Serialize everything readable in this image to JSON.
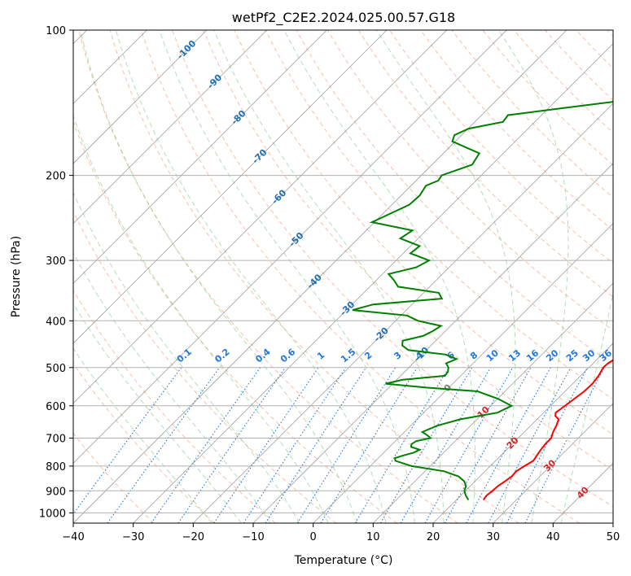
{
  "chart_data": {
    "type": "line",
    "subtype": "skew-t log-p diagram",
    "title": "wetPf2_C2E2.2024.025.00.57.G18",
    "xlabel": "Temperature (°C)",
    "ylabel": "Pressure (hPa)",
    "xlim": [
      -40,
      50
    ],
    "ylim": [
      1050,
      100
    ],
    "y_scale": "log",
    "grid": true,
    "x_ticks": [
      -40,
      -30,
      -20,
      -10,
      0,
      10,
      20,
      30,
      40,
      50
    ],
    "y_ticks": [
      100,
      200,
      300,
      400,
      500,
      600,
      700,
      800,
      900,
      1000
    ],
    "colors": {
      "temperature": "#ff0000",
      "dewpoint": "#008000",
      "dry_adiabats": "#f4a582",
      "moist_adiabats": "#74c476",
      "mixing_ratio": "#1f77dd",
      "isotherms": "#808080",
      "isotherm_labels": "#1f6fb4",
      "adiabat_labels": "#d62728"
    },
    "series": [
      {
        "role": "temperature",
        "pressure": [
          940,
          920,
          900,
          880,
          860,
          840,
          820,
          800,
          780,
          760,
          740,
          720,
          700,
          680,
          660,
          640,
          630,
          620,
          610,
          600,
          580,
          560,
          540,
          520,
          500,
          490,
          480,
          470,
          460,
          450,
          440,
          430,
          420,
          410,
          400,
          380,
          360,
          340,
          320,
          300,
          290,
          280,
          270,
          260,
          250,
          240,
          230,
          220,
          210,
          200,
          190,
          180,
          170,
          165,
          160,
          150,
          140,
          130,
          120,
          110,
          105,
          100
        ],
        "values": [
          24.5,
          24.3,
          24.5,
          24.6,
          25.0,
          25.3,
          25.2,
          25.7,
          26.3,
          26.0,
          25.7,
          25.5,
          25.5,
          24.8,
          24.3,
          23.6,
          22.5,
          22.0,
          22.2,
          22.4,
          22.8,
          23.2,
          23.3,
          23.0,
          22.4,
          22.5,
          22.9,
          23.3,
          23.2,
          23.0,
          23.1,
          22.9,
          22.7,
          22.4,
          21.5,
          19.5,
          17.8,
          16.7,
          14.6,
          12.4,
          12.0,
          11.6,
          11.0,
          10.3,
          9.4,
          8.3,
          7.0,
          5.6,
          4.3,
          3.2,
          2.8,
          2.6,
          2.5,
          2.2,
          1.8,
          0.8,
          -0.2,
          -1.1,
          -1.7,
          -2.1,
          -2.3,
          -2.6
        ]
      },
      {
        "role": "dewpoint",
        "pressure": [
          940,
          920,
          900,
          880,
          860,
          840,
          820,
          800,
          780,
          770,
          760,
          750,
          740,
          730,
          720,
          710,
          700,
          690,
          680,
          660,
          640,
          620,
          600,
          580,
          560,
          550,
          540,
          530,
          520,
          510,
          500,
          490,
          480,
          470,
          460,
          450,
          440,
          430,
          420,
          410,
          400,
          390,
          380,
          370,
          360,
          350,
          340,
          330,
          320,
          310,
          300,
          290,
          280,
          270,
          260,
          250,
          240,
          230,
          220,
          210,
          205,
          200,
          190,
          180,
          170,
          165,
          160,
          155,
          150,
          145,
          140,
          130,
          120,
          110,
          105,
          100
        ],
        "values": [
          22.0,
          20.8,
          19.8,
          19.3,
          18.2,
          16.4,
          13.2,
          6.9,
          3.3,
          2.8,
          3.8,
          5.0,
          5.5,
          3.6,
          3.2,
          3.5,
          5.4,
          4.3,
          3.0,
          4.4,
          7.2,
          12.3,
          13.5,
          10.0,
          5.4,
          -3.8,
          -11.2,
          -9.0,
          -2.6,
          -2.8,
          -3.4,
          -4.5,
          -3.5,
          -6.0,
          -13.0,
          -14.8,
          -15.5,
          -12.9,
          -12.1,
          -11.6,
          -16.3,
          -19.0,
          -29.0,
          -26.5,
          -16.0,
          -17.5,
          -25.3,
          -27.0,
          -29.0,
          -25.5,
          -24.5,
          -28.8,
          -28.5,
          -33.0,
          -32.3,
          -40.4,
          -38.8,
          -37.1,
          -36.9,
          -37.5,
          -36.3,
          -36.6,
          -33.3,
          -34.0,
          -40.5,
          -41.2,
          -39.9,
          -35.3,
          -35.6,
          -27.5,
          -19.0,
          -13.5,
          -9.3,
          -6.0,
          -4.5,
          -4.0
        ]
      }
    ],
    "isotherm_labels": [
      "-100",
      "-90",
      "-80",
      "-70",
      "-60",
      "-50",
      "-40",
      "-30",
      "-20",
      "-10",
      "0",
      "10",
      "20",
      "30",
      "40"
    ],
    "mixing_ratio_labels": [
      "0.1",
      "0.2",
      "0.4",
      "0.6",
      "1",
      "1.5",
      "2",
      "3",
      "4",
      "6",
      "8",
      "10",
      "13",
      "16",
      "20",
      "25",
      "30",
      "36"
    ],
    "mixing_ratio_values": [
      0.1,
      0.2,
      0.4,
      0.6,
      1,
      1.5,
      2,
      3,
      4,
      6,
      8,
      10,
      13,
      16,
      20,
      25,
      30,
      36
    ]
  }
}
